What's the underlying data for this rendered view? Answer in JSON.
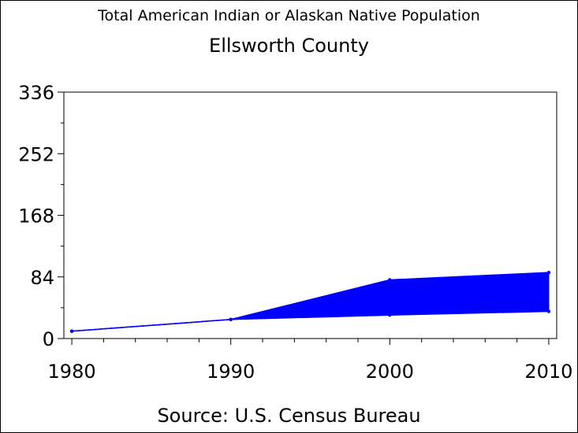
{
  "chart_title": "Total American Indian or Alaskan Native Population",
  "chart_subtitle": "Ellsworth County",
  "source_note": "Source: U.S. Census Bureau",
  "colors": {
    "series": "#0000ff",
    "axis": "#000000",
    "background": "#ffffff"
  },
  "chart_data": {
    "type": "area",
    "title": "Total American Indian or Alaskan Native Population",
    "subtitle": "Ellsworth County",
    "xlabel": "",
    "ylabel": "",
    "x": [
      1980,
      1990,
      2000,
      2010
    ],
    "x_ticks": [
      "1980",
      "1990",
      "2000",
      "2010"
    ],
    "y_ticks": [
      "0",
      "84",
      "168",
      "252",
      "336"
    ],
    "ylim": [
      0,
      336
    ],
    "xlim": [
      1979.5,
      2010.5
    ],
    "grid": false,
    "legend": "none",
    "series": [
      {
        "values": [
          10,
          26,
          80,
          90
        ]
      },
      {
        "values": [
          10,
          26,
          32,
          37
        ]
      }
    ],
    "source": "Source: U.S. Census Bureau"
  }
}
